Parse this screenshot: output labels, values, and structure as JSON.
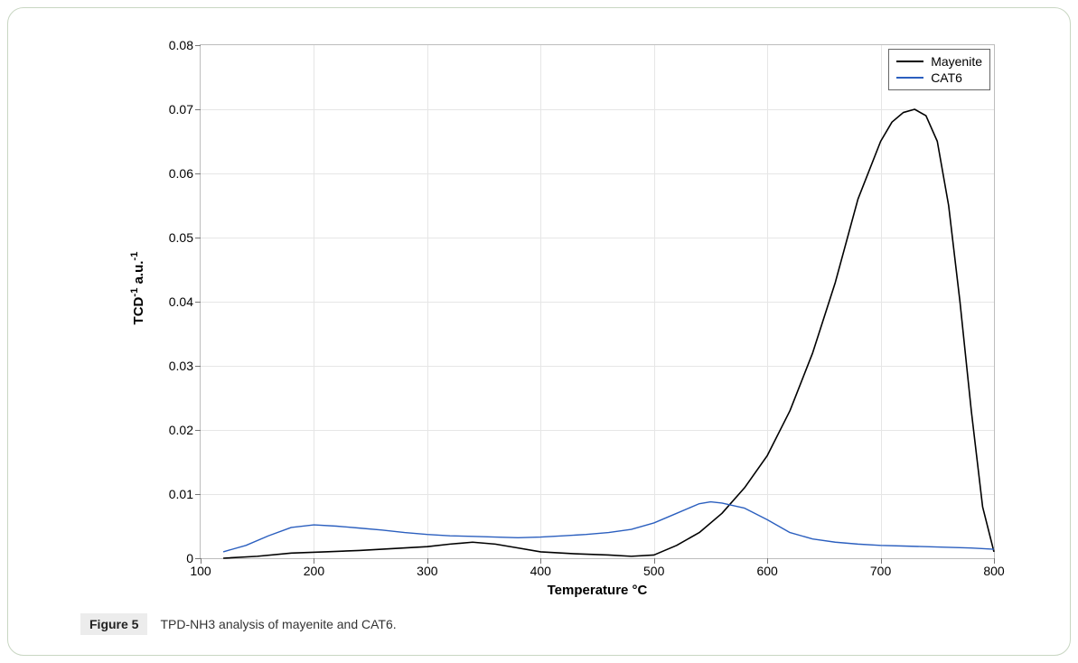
{
  "figure": {
    "caption_label": "Figure 5",
    "caption_text": "TPD-NH3 analysis of mayenite and CAT6."
  },
  "chart": {
    "type": "line",
    "background_color": "#ffffff",
    "border_color": "#bdbdbd",
    "grid_color": "#e6e6e6",
    "x_axis": {
      "label_html": "Temperature °C",
      "min": 100,
      "max": 800,
      "tick_step": 100,
      "ticks": [
        100,
        200,
        300,
        400,
        500,
        600,
        700,
        800
      ],
      "label_fontsize": 15,
      "tick_fontsize": 14
    },
    "y_axis": {
      "label_html": "TCD<sup>-1</sup> a.u.<sup>-1</sup>",
      "min": 0,
      "max": 0.08,
      "tick_step": 0.01,
      "ticks": [
        0,
        0.01,
        0.02,
        0.03,
        0.04,
        0.05,
        0.06,
        0.07,
        0.08
      ],
      "label_fontsize": 15,
      "tick_fontsize": 14
    },
    "legend": {
      "position": "top-right",
      "border_color": "#666666",
      "items": [
        {
          "label": "Mayenite",
          "color": "#000000"
        },
        {
          "label": "CAT6",
          "color": "#2b5fbf"
        }
      ]
    },
    "series": [
      {
        "name": "Mayenite",
        "color": "#000000",
        "line_width": 1.6,
        "x": [
          120,
          150,
          180,
          210,
          240,
          270,
          300,
          320,
          340,
          360,
          380,
          400,
          430,
          460,
          480,
          500,
          520,
          540,
          560,
          580,
          600,
          620,
          640,
          660,
          680,
          700,
          710,
          720,
          730,
          740,
          750,
          760,
          770,
          780,
          790,
          800
        ],
        "y": [
          0.0,
          0.0003,
          0.0008,
          0.001,
          0.0012,
          0.0015,
          0.0018,
          0.0022,
          0.0025,
          0.0022,
          0.0016,
          0.001,
          0.0007,
          0.0005,
          0.0003,
          0.0005,
          0.002,
          0.004,
          0.007,
          0.011,
          0.016,
          0.023,
          0.032,
          0.043,
          0.056,
          0.065,
          0.068,
          0.0695,
          0.07,
          0.069,
          0.065,
          0.055,
          0.04,
          0.023,
          0.008,
          0.001
        ]
      },
      {
        "name": "CAT6",
        "color": "#2b5fbf",
        "line_width": 1.4,
        "x": [
          120,
          140,
          160,
          180,
          200,
          220,
          240,
          260,
          280,
          300,
          320,
          340,
          360,
          380,
          400,
          420,
          440,
          460,
          480,
          500,
          520,
          540,
          550,
          560,
          580,
          600,
          620,
          640,
          660,
          680,
          700,
          720,
          740,
          760,
          780,
          800
        ],
        "y": [
          0.001,
          0.002,
          0.0035,
          0.0048,
          0.0052,
          0.005,
          0.0047,
          0.0044,
          0.004,
          0.0037,
          0.0035,
          0.0034,
          0.0033,
          0.0032,
          0.0033,
          0.0035,
          0.0037,
          0.004,
          0.0045,
          0.0055,
          0.007,
          0.0085,
          0.0088,
          0.0086,
          0.0078,
          0.006,
          0.004,
          0.003,
          0.0025,
          0.0022,
          0.002,
          0.0019,
          0.0018,
          0.0017,
          0.0016,
          0.0014
        ]
      }
    ]
  }
}
